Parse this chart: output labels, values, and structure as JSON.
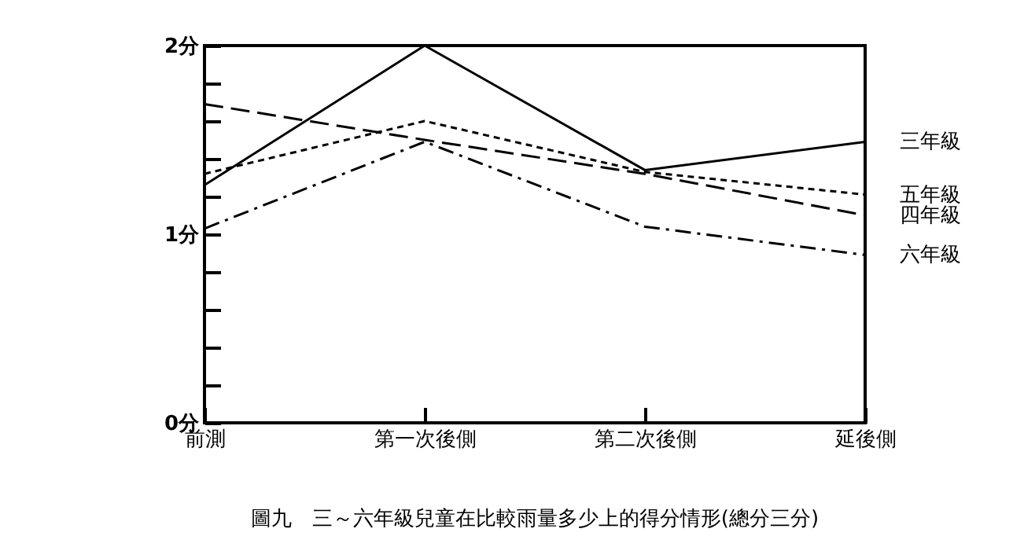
{
  "chart_data": {
    "type": "line",
    "title": "圖九　三～六年級兒童在比較雨量多少上的得分情形(總分三分)",
    "categories": [
      "前測",
      "第一次後側",
      "第二次後側",
      "延後側"
    ],
    "series": [
      {
        "name": "三年級",
        "color": "#000000",
        "line_style": "solid",
        "values": [
          1.26,
          2.0,
          1.34,
          1.49
        ]
      },
      {
        "name": "五年級",
        "color": "#000000",
        "line_style": "dotted",
        "values": [
          1.32,
          1.6,
          1.33,
          1.21
        ]
      },
      {
        "name": "四年級",
        "color": "#000000",
        "line_style": "dashed",
        "values": [
          1.69,
          1.5,
          1.32,
          1.1
        ]
      },
      {
        "name": "六年級",
        "color": "#000000",
        "line_style": "dashdot",
        "values": [
          1.03,
          1.49,
          1.04,
          0.89
        ]
      }
    ],
    "ylim": [
      0,
      2
    ],
    "yticks": [
      {
        "value": 0,
        "label": "0分"
      },
      {
        "value": 0.2,
        "label": null
      },
      {
        "value": 0.4,
        "label": null
      },
      {
        "value": 0.6,
        "label": null
      },
      {
        "value": 0.8,
        "label": null
      },
      {
        "value": 1,
        "label": "1分"
      },
      {
        "value": 1.2,
        "label": null
      },
      {
        "value": 1.4,
        "label": null
      },
      {
        "value": 1.6,
        "label": null
      },
      {
        "value": 1.8,
        "label": null
      },
      {
        "value": 2,
        "label": "2分"
      }
    ],
    "grid": false,
    "legend": false,
    "marker": "none"
  }
}
